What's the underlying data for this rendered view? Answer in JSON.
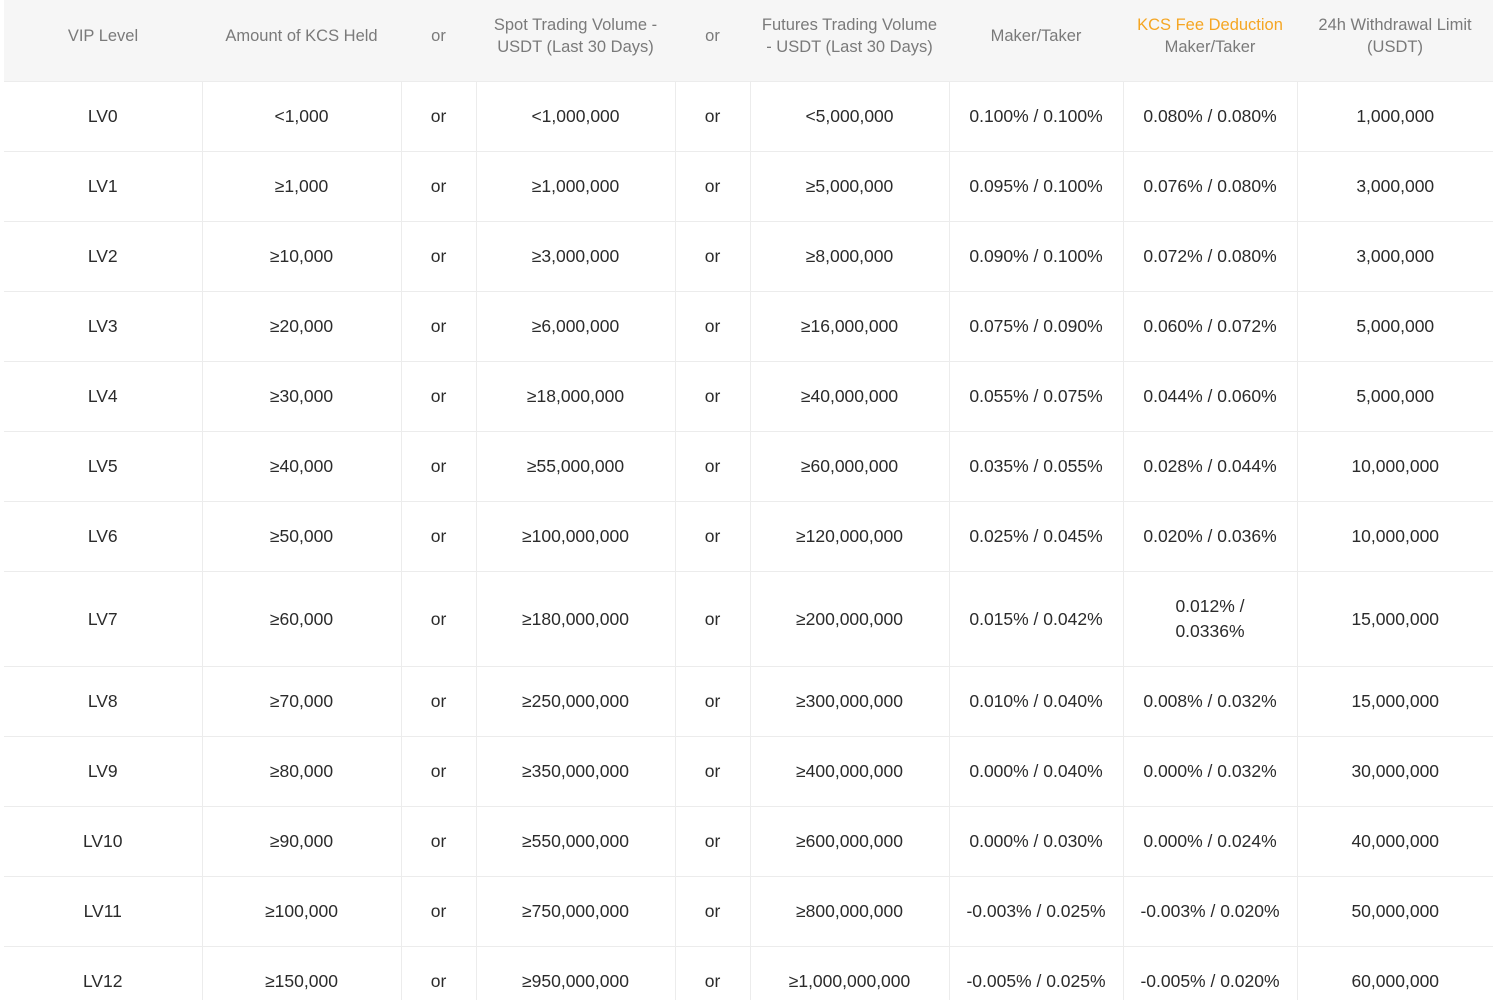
{
  "table": {
    "headers": {
      "vip_level": "VIP Level",
      "kcs_held": "Amount of KCS Held",
      "or1": "or",
      "spot_volume": "Spot Trading Volume - USDT (Last 30 Days)",
      "or2": "or",
      "futures_volume": "Futures Trading Volume - USDT (Last 30 Days)",
      "maker_taker": "Maker/Taker",
      "kcs_fee_deduction": "KCS Fee Deduction",
      "kcs_fee_maker_taker": "Maker/Taker",
      "withdrawal_limit": "24h Withdrawal Limit (USDT)"
    },
    "accent_color": "#f5a623",
    "rows": [
      {
        "level": "LV0",
        "kcs": "<1,000",
        "or1": "or",
        "spot": "<1,000,000",
        "or2": "or",
        "futures": "<5,000,000",
        "fee": "0.100% / 0.100%",
        "kcs_fee": "0.080% / 0.080%",
        "limit": "1,000,000"
      },
      {
        "level": "LV1",
        "kcs": "≥1,000",
        "or1": "or",
        "spot": "≥1,000,000",
        "or2": "or",
        "futures": "≥5,000,000",
        "fee": "0.095% / 0.100%",
        "kcs_fee": "0.076% / 0.080%",
        "limit": "3,000,000"
      },
      {
        "level": "LV2",
        "kcs": "≥10,000",
        "or1": "or",
        "spot": "≥3,000,000",
        "or2": "or",
        "futures": "≥8,000,000",
        "fee": "0.090% / 0.100%",
        "kcs_fee": "0.072% / 0.080%",
        "limit": "3,000,000"
      },
      {
        "level": "LV3",
        "kcs": "≥20,000",
        "or1": "or",
        "spot": "≥6,000,000",
        "or2": "or",
        "futures": "≥16,000,000",
        "fee": "0.075% / 0.090%",
        "kcs_fee": "0.060% / 0.072%",
        "limit": "5,000,000"
      },
      {
        "level": "LV4",
        "kcs": "≥30,000",
        "or1": "or",
        "spot": "≥18,000,000",
        "or2": "or",
        "futures": "≥40,000,000",
        "fee": "0.055% / 0.075%",
        "kcs_fee": "0.044% / 0.060%",
        "limit": "5,000,000"
      },
      {
        "level": "LV5",
        "kcs": "≥40,000",
        "or1": "or",
        "spot": "≥55,000,000",
        "or2": "or",
        "futures": "≥60,000,000",
        "fee": "0.035% / 0.055%",
        "kcs_fee": "0.028% / 0.044%",
        "limit": "10,000,000"
      },
      {
        "level": "LV6",
        "kcs": "≥50,000",
        "or1": "or",
        "spot": "≥100,000,000",
        "or2": "or",
        "futures": "≥120,000,000",
        "fee": "0.025% / 0.045%",
        "kcs_fee": "0.020% / 0.036%",
        "limit": "10,000,000"
      },
      {
        "level": "LV7",
        "kcs": "≥60,000",
        "or1": "or",
        "spot": "≥180,000,000",
        "or2": "or",
        "futures": "≥200,000,000",
        "fee": "0.015% / 0.042%",
        "kcs_fee": "0.012% / 0.0336%",
        "limit": "15,000,000"
      },
      {
        "level": "LV8",
        "kcs": "≥70,000",
        "or1": "or",
        "spot": "≥250,000,000",
        "or2": "or",
        "futures": "≥300,000,000",
        "fee": "0.010% / 0.040%",
        "kcs_fee": "0.008% / 0.032%",
        "limit": "15,000,000"
      },
      {
        "level": "LV9",
        "kcs": "≥80,000",
        "or1": "or",
        "spot": "≥350,000,000",
        "or2": "or",
        "futures": "≥400,000,000",
        "fee": "0.000% / 0.040%",
        "kcs_fee": "0.000% / 0.032%",
        "limit": "30,000,000"
      },
      {
        "level": "LV10",
        "kcs": "≥90,000",
        "or1": "or",
        "spot": "≥550,000,000",
        "or2": "or",
        "futures": "≥600,000,000",
        "fee": "0.000% / 0.030%",
        "kcs_fee": "0.000% / 0.024%",
        "limit": "40,000,000"
      },
      {
        "level": "LV11",
        "kcs": "≥100,000",
        "or1": "or",
        "spot": "≥750,000,000",
        "or2": "or",
        "futures": "≥800,000,000",
        "fee": "-0.003% / 0.025%",
        "kcs_fee": "-0.003% / 0.020%",
        "limit": "50,000,000"
      },
      {
        "level": "LV12",
        "kcs": "≥150,000",
        "or1": "or",
        "spot": "≥950,000,000",
        "or2": "or",
        "futures": "≥1,000,000,000",
        "fee": "-0.005% / 0.025%",
        "kcs_fee": "-0.005% / 0.020%",
        "limit": "60,000,000"
      }
    ]
  }
}
